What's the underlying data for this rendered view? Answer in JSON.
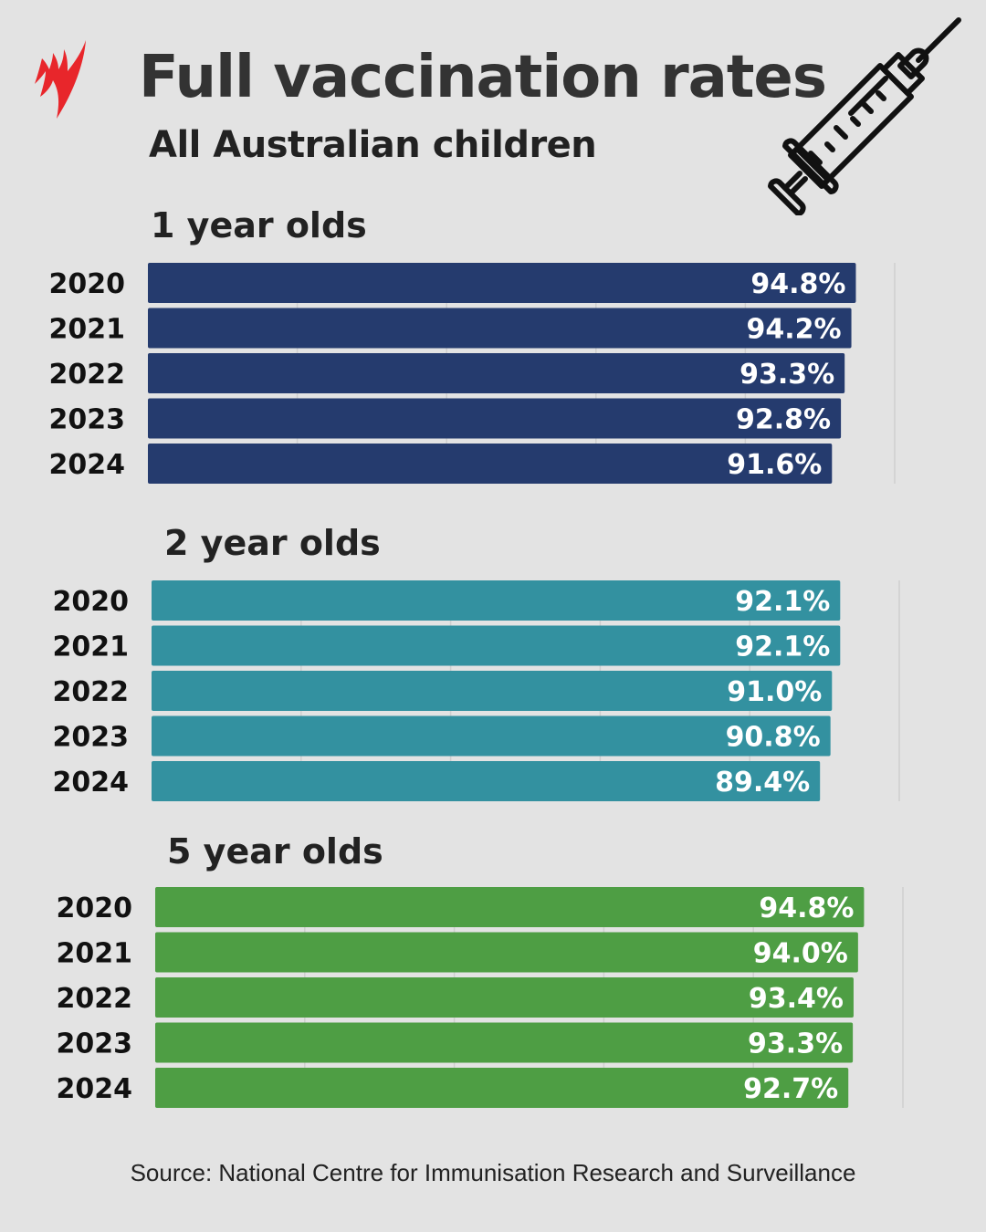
{
  "title": "Full vaccination rates",
  "subtitle": "All Australian children",
  "source": "Source: National Centre for Immunisation Research and Surveillance",
  "icons": {
    "logo": "sbs-logo",
    "decoration": "syringe-icon"
  },
  "colors": {
    "background": "#e3e3e3",
    "logo": "#e8262b"
  },
  "chart_data": [
    {
      "type": "bar",
      "orientation": "horizontal",
      "title": "1 year olds",
      "categories": [
        "2020",
        "2021",
        "2022",
        "2023",
        "2024"
      ],
      "values": [
        94.8,
        94.2,
        93.3,
        92.8,
        91.6
      ],
      "labels": [
        "94.8%",
        "94.2%",
        "93.3%",
        "92.8%",
        "91.6%"
      ],
      "xlim": [
        0,
        100
      ],
      "grid": true,
      "color": "#253b6e"
    },
    {
      "type": "bar",
      "orientation": "horizontal",
      "title": "2 year olds",
      "categories": [
        "2020",
        "2021",
        "2022",
        "2023",
        "2024"
      ],
      "values": [
        92.1,
        92.1,
        91.0,
        90.8,
        89.4
      ],
      "labels": [
        "92.1%",
        "92.1%",
        "91.0%",
        "90.8%",
        "89.4%"
      ],
      "xlim": [
        0,
        100
      ],
      "grid": true,
      "color": "#3391a0"
    },
    {
      "type": "bar",
      "orientation": "horizontal",
      "title": "5 year olds",
      "categories": [
        "2020",
        "2021",
        "2022",
        "2023",
        "2024"
      ],
      "values": [
        94.8,
        94.0,
        93.4,
        93.3,
        92.7
      ],
      "labels": [
        "94.8%",
        "94.0%",
        "93.4%",
        "93.3%",
        "92.7%"
      ],
      "xlim": [
        0,
        100
      ],
      "grid": true,
      "color": "#4e9e44"
    }
  ]
}
